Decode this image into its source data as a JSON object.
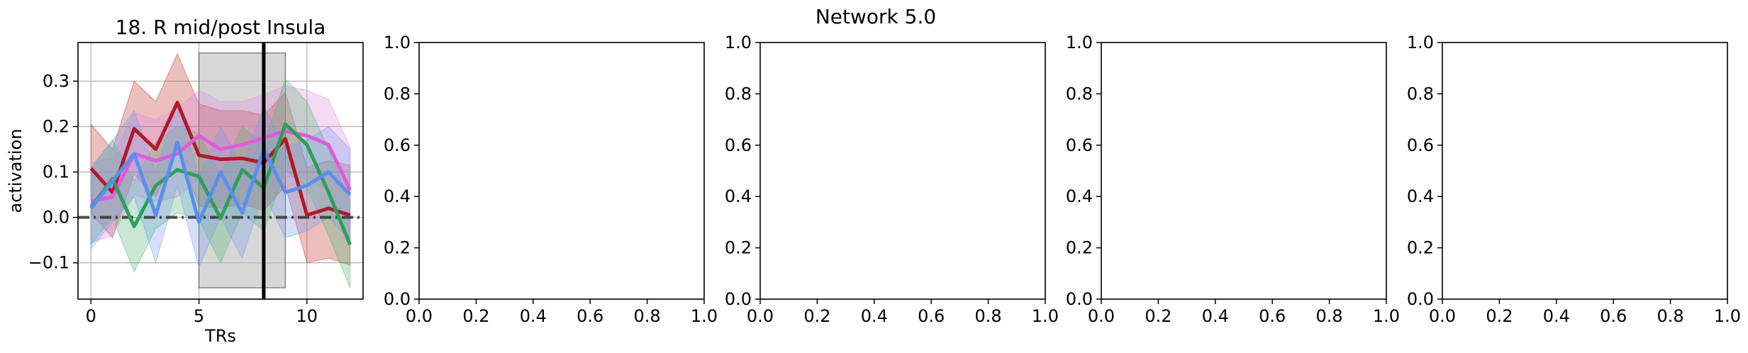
{
  "suptitle": "Network 5.0",
  "chart_data": [
    {
      "type": "line",
      "title": "18. R mid/post Insula",
      "xlabel": "TRs",
      "ylabel": "activation",
      "xlim": [
        -0.6,
        12.6
      ],
      "ylim": [
        -0.18,
        0.385
      ],
      "xticks": [
        0,
        5,
        10
      ],
      "yticks": [
        -0.1,
        0.0,
        0.1,
        0.2,
        0.3
      ],
      "ytick_labels": [
        "−0.1",
        "0.0",
        "0.1",
        "0.2",
        "0.3"
      ],
      "grid": true,
      "shaded_region": {
        "x": [
          5,
          9
        ],
        "y": [
          -0.155,
          0.362
        ],
        "color": "#bfbfbf"
      },
      "vline": {
        "x": 8,
        "color": "#000000"
      },
      "hline": {
        "y": 0,
        "style": "dashdot",
        "color": "#333333"
      },
      "x": [
        0,
        1,
        2,
        3,
        4,
        5,
        6,
        7,
        8,
        9,
        10,
        11,
        12
      ],
      "series": [
        {
          "color": "#b2182b",
          "fill": "#c0392b",
          "values": [
            0.108,
            0.055,
            0.195,
            0.15,
            0.253,
            0.137,
            0.128,
            0.13,
            0.12,
            0.173,
            0.005,
            0.02,
            0.005
          ],
          "lower": [
            0.01,
            -0.045,
            0.095,
            0.045,
            0.15,
            0.025,
            0.02,
            0.03,
            0.015,
            0.07,
            -0.1,
            -0.09,
            -0.105
          ],
          "upper": [
            0.205,
            0.15,
            0.3,
            0.255,
            0.36,
            0.25,
            0.235,
            0.235,
            0.225,
            0.275,
            0.11,
            0.125,
            0.115
          ]
        },
        {
          "color": "#e05cd8",
          "fill": "#e08ce0",
          "values": [
            0.035,
            0.045,
            0.14,
            0.125,
            0.14,
            0.18,
            0.15,
            0.16,
            0.175,
            0.19,
            0.18,
            0.16,
            0.06
          ],
          "lower": [
            -0.055,
            -0.04,
            0.05,
            0.035,
            0.045,
            0.085,
            0.045,
            0.065,
            0.08,
            0.09,
            0.085,
            0.06,
            -0.03
          ],
          "upper": [
            0.12,
            0.13,
            0.23,
            0.215,
            0.24,
            0.28,
            0.255,
            0.255,
            0.27,
            0.29,
            0.28,
            0.26,
            0.155
          ]
        },
        {
          "color": "#2e9e5b",
          "fill": "#5ab37a",
          "values": [
            0.022,
            0.085,
            -0.02,
            0.07,
            0.105,
            0.09,
            -0.002,
            0.105,
            0.065,
            0.205,
            0.16,
            0.055,
            -0.06
          ],
          "lower": [
            -0.06,
            0.0,
            -0.12,
            -0.025,
            0.01,
            -0.005,
            -0.1,
            0.01,
            -0.03,
            0.105,
            0.065,
            -0.04,
            -0.155
          ],
          "upper": [
            0.105,
            0.17,
            0.08,
            0.165,
            0.2,
            0.185,
            0.095,
            0.2,
            0.16,
            0.305,
            0.255,
            0.15,
            0.035
          ]
        },
        {
          "color": "#5b8def",
          "fill": "#7a9ee8",
          "values": [
            0.02,
            0.08,
            0.14,
            0.005,
            0.165,
            -0.01,
            0.1,
            0.01,
            0.15,
            0.055,
            0.07,
            0.1,
            0.05
          ],
          "lower": [
            -0.07,
            -0.01,
            0.045,
            -0.1,
            0.07,
            -0.11,
            0.0,
            -0.09,
            0.055,
            -0.045,
            -0.03,
            0.0,
            -0.05
          ],
          "upper": [
            0.11,
            0.17,
            0.235,
            0.1,
            0.255,
            0.09,
            0.2,
            0.11,
            0.245,
            0.155,
            0.17,
            0.2,
            0.15
          ]
        }
      ]
    },
    {
      "type": "line",
      "xlim": [
        0,
        1
      ],
      "ylim": [
        0,
        1
      ],
      "xticks": [
        "0.0",
        "0.2",
        "0.4",
        "0.6",
        "0.8",
        "1.0"
      ],
      "yticks": [
        "0.0",
        "0.2",
        "0.4",
        "0.6",
        "0.8",
        "1.0"
      ]
    },
    {
      "type": "line",
      "xlim": [
        0,
        1
      ],
      "ylim": [
        0,
        1
      ],
      "xticks": [
        "0.0",
        "0.2",
        "0.4",
        "0.6",
        "0.8",
        "1.0"
      ],
      "yticks": [
        "0.0",
        "0.2",
        "0.4",
        "0.6",
        "0.8",
        "1.0"
      ]
    },
    {
      "type": "line",
      "xlim": [
        0,
        1
      ],
      "ylim": [
        0,
        1
      ],
      "xticks": [
        "0.0",
        "0.2",
        "0.4",
        "0.6",
        "0.8",
        "1.0"
      ],
      "yticks": [
        "0.0",
        "0.2",
        "0.4",
        "0.6",
        "0.8",
        "1.0"
      ]
    },
    {
      "type": "line",
      "xlim": [
        0,
        1
      ],
      "ylim": [
        0,
        1
      ],
      "xticks": [
        "0.0",
        "0.2",
        "0.4",
        "0.6",
        "0.8",
        "1.0"
      ],
      "yticks": [
        "0.0",
        "0.2",
        "0.4",
        "0.6",
        "0.8",
        "1.0"
      ]
    }
  ]
}
